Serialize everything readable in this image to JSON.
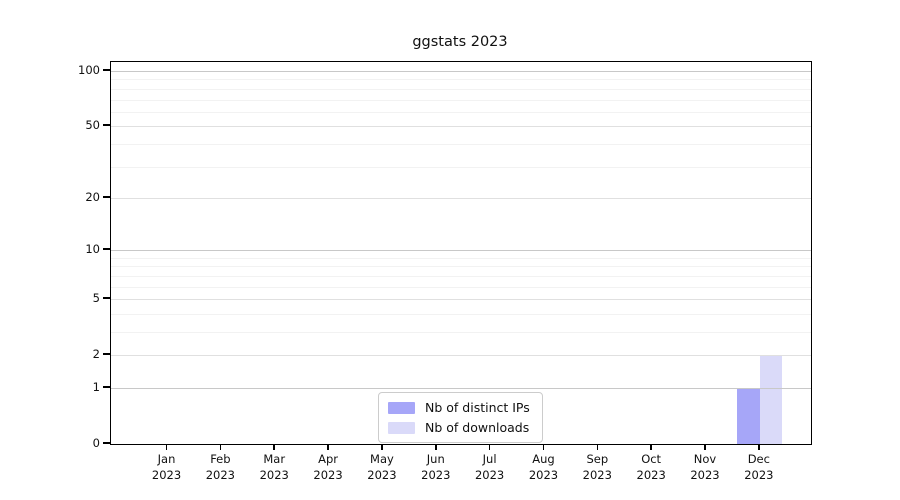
{
  "chart_data": {
    "type": "bar",
    "title": "ggstats 2023",
    "categories": [
      {
        "month": "Jan",
        "year": "2023"
      },
      {
        "month": "Feb",
        "year": "2023"
      },
      {
        "month": "Mar",
        "year": "2023"
      },
      {
        "month": "Apr",
        "year": "2023"
      },
      {
        "month": "May",
        "year": "2023"
      },
      {
        "month": "Jun",
        "year": "2023"
      },
      {
        "month": "Jul",
        "year": "2023"
      },
      {
        "month": "Aug",
        "year": "2023"
      },
      {
        "month": "Sep",
        "year": "2023"
      },
      {
        "month": "Oct",
        "year": "2023"
      },
      {
        "month": "Nov",
        "year": "2023"
      },
      {
        "month": "Dec",
        "year": "2023"
      }
    ],
    "series": [
      {
        "name": "Nb of distinct IPs",
        "color": "#a6a6f8",
        "values": [
          0,
          0,
          0,
          0,
          0,
          0,
          0,
          0,
          0,
          0,
          0,
          1
        ]
      },
      {
        "name": "Nb of downloads",
        "color": "#dadaf9",
        "values": [
          0,
          0,
          0,
          0,
          0,
          0,
          0,
          0,
          0,
          0,
          0,
          2
        ]
      }
    ],
    "xlabel": "",
    "ylabel": "",
    "yscale": "log1p",
    "yticks": [
      0,
      1,
      2,
      5,
      10,
      20,
      50,
      100
    ],
    "minor_yticks": [
      3,
      4,
      6,
      7,
      8,
      9,
      30,
      40,
      60,
      70,
      80,
      90
    ],
    "ylim": [
      0,
      112
    ],
    "grid": "horizontal",
    "grid_colors": {
      "power_of_ten": "#c8c8c8",
      "labeled": "#e0e0e0",
      "minor": "#f2f2f2"
    },
    "legend": {
      "position": "inside-bottom-center",
      "entries": [
        "Nb of distinct IPs",
        "Nb of downloads"
      ]
    }
  }
}
